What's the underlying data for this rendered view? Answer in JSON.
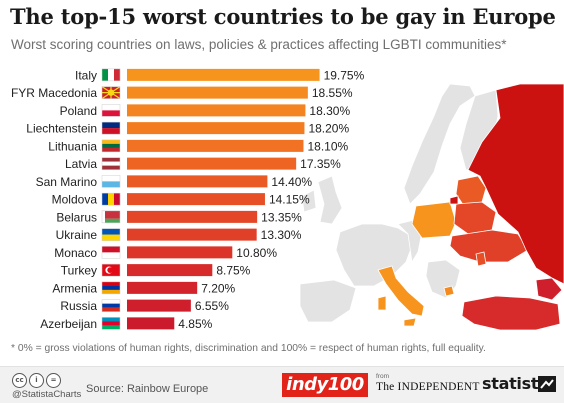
{
  "header": {
    "title": "The top-15 worst countries to be gay in Europe",
    "subtitle": "Worst scoring countries on laws, policies & practices affecting LGBTI communities*"
  },
  "chart_data": {
    "type": "bar",
    "orientation": "horizontal",
    "title": "The top-15 worst countries to be gay in Europe",
    "categories": [
      "Italy",
      "FYR Macedonia",
      "Poland",
      "Liechtenstein",
      "Lithuania",
      "Latvia",
      "San Marino",
      "Moldova",
      "Belarus",
      "Ukraine",
      "Monaco",
      "Turkey",
      "Armenia",
      "Russia",
      "Azerbeijan"
    ],
    "values": [
      19.75,
      18.55,
      18.3,
      18.2,
      18.1,
      17.35,
      14.4,
      14.15,
      13.35,
      13.3,
      10.8,
      8.75,
      7.2,
      6.55,
      4.85
    ],
    "value_labels": [
      "19.75%",
      "18.55%",
      "18.30%",
      "18.20%",
      "18.10%",
      "17.35%",
      "14.40%",
      "14.15%",
      "13.35%",
      "13.30%",
      "10.80%",
      "8.75%",
      "7.20%",
      "6.55%",
      "4.85%"
    ],
    "unit": "%",
    "xlim": [
      0,
      20
    ],
    "grid": false,
    "legend": "none",
    "bar_colors": [
      "#f7941e",
      "#f58b1f",
      "#f48420",
      "#f37c21",
      "#f17222",
      "#ee6523",
      "#ea5a25",
      "#e75026",
      "#e34727",
      "#e03f28",
      "#dc3429",
      "#d72a2a",
      "#d3232b",
      "#cf1e2c",
      "#cb1a2c"
    ]
  },
  "map": {
    "russia_color": "#cc1111",
    "highlight_dark": "#e03a1a",
    "highlight_orange": "#f7941e",
    "other_land": "#e3e3e3",
    "sea": "#ffffff"
  },
  "footnote": "* 0% = gross violations of human rights, discrimination and 100% = respect of human rights, full equality.",
  "footer": {
    "cc_icons": [
      "cc-icon",
      "by-icon",
      "nd-icon"
    ],
    "cc_glyphs": [
      "cc",
      "i",
      "="
    ],
    "handle": "@StatistaCharts",
    "source": "Source: Rainbow Europe",
    "indy": "indy100",
    "from": "from",
    "independent": "The INDEPENDENT",
    "statista": "statista"
  }
}
